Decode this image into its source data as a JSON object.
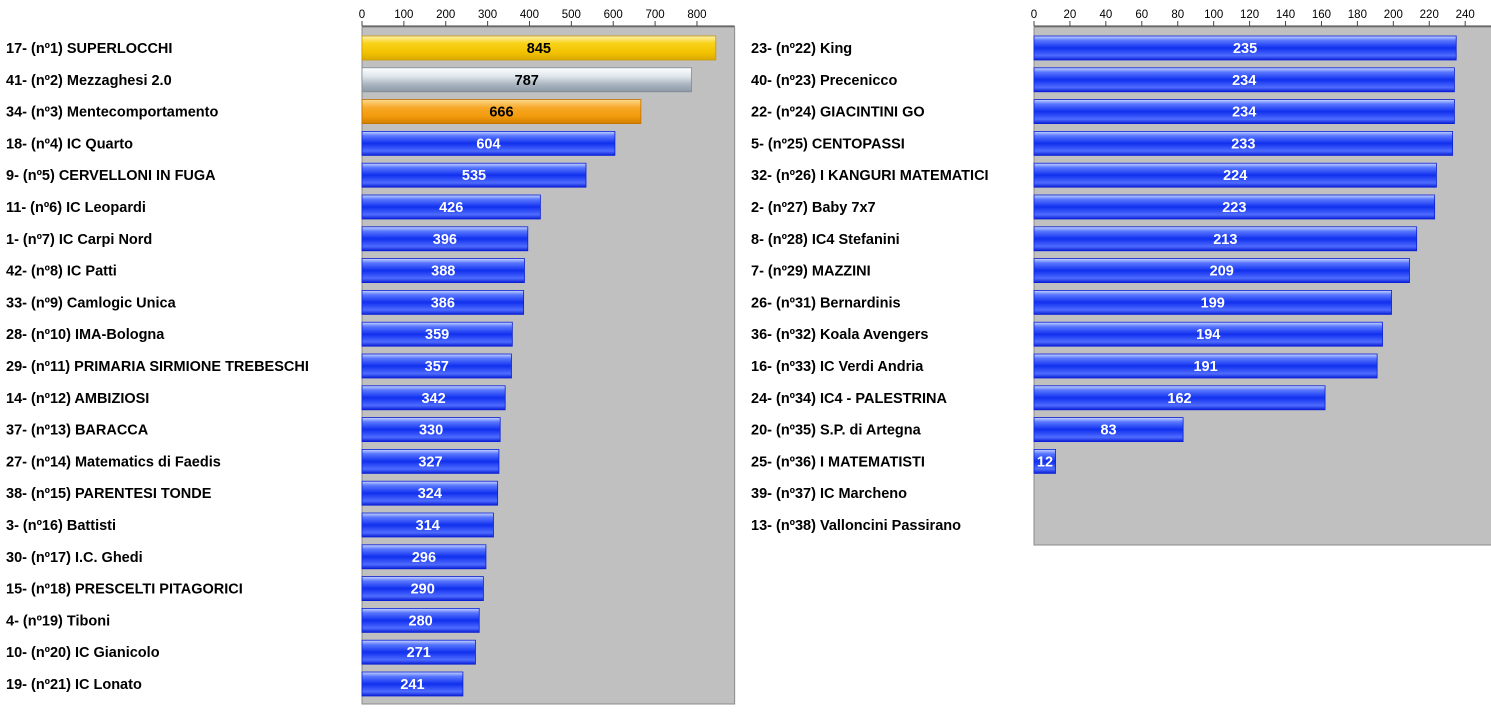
{
  "chart_data": [
    {
      "type": "bar",
      "orientation": "horizontal",
      "categories": [
        "17- (nº1) SUPERLOCCHI",
        "41- (nº2) Mezzaghesi 2.0",
        "34- (nº3) Mentecomportamento",
        "18- (nº4) IC Quarto",
        "9- (nº5) CERVELLONI IN FUGA",
        "11- (nº6) IC Leopardi",
        "1- (nº7) IC Carpi Nord",
        "42- (nº8) IC Patti",
        "33- (nº9) Camlogic Unica",
        "28- (nº10) IMA-Bologna",
        "29- (nº11) PRIMARIA SIRMIONE TREBESCHI",
        "14- (nº12) AMBIZIOSI",
        "37- (nº13) BARACCA",
        "27- (nº14) Matematics di Faedis",
        "38- (nº15) PARENTESI TONDE",
        "3- (nº16) Battisti",
        "30- (nº17) I.C. Ghedi",
        "15- (nº18) PRESCELTI PITAGORICI",
        "4- (nº19) Tiboni",
        "10- (nº20) IC Gianicolo",
        "19- (nº21) IC Lonato"
      ],
      "values": [
        845,
        787,
        666,
        604,
        535,
        426,
        396,
        388,
        386,
        359,
        357,
        342,
        330,
        327,
        324,
        314,
        296,
        290,
        280,
        271,
        241
      ],
      "bar_styles": [
        "gold",
        "silver",
        "bronze",
        "blue",
        "blue",
        "blue",
        "blue",
        "blue",
        "blue",
        "blue",
        "blue",
        "blue",
        "blue",
        "blue",
        "blue",
        "blue",
        "blue",
        "blue",
        "blue",
        "blue",
        "blue"
      ],
      "xlim": [
        0,
        890
      ],
      "xticks": [
        0,
        100,
        200,
        300,
        400,
        500,
        600,
        700,
        800
      ],
      "axis_position": "top",
      "grid": false
    },
    {
      "type": "bar",
      "orientation": "horizontal",
      "categories": [
        "23- (nº22) King",
        "40- (nº23) Precenicco",
        "22- (nº24) GIACINTINI GO",
        "5- (nº25) CENTOPASSI",
        "32- (nº26) I KANGURI MATEMATICI",
        "2- (nº27) Baby 7x7",
        "8- (nº28) IC4 Stefanini",
        "7- (nº29) MAZZINI",
        "26- (nº31) Bernardinis",
        "36- (nº32) Koala Avengers",
        "16- (nº33) IC Verdi Andria",
        "24- (nº34) IC4 - PALESTRINA",
        "20- (nº35) S.P. di Artegna",
        "25- (nº36) I MATEMATISTI",
        "39- (nº37) IC Marcheno",
        "13- (nº38) Valloncini Passirano"
      ],
      "values": [
        235,
        234,
        234,
        233,
        224,
        223,
        213,
        209,
        199,
        194,
        191,
        162,
        83,
        12,
        0,
        0
      ],
      "bar_styles": [
        "blue",
        "blue",
        "blue",
        "blue",
        "blue",
        "blue",
        "blue",
        "blue",
        "blue",
        "blue",
        "blue",
        "blue",
        "blue",
        "blue",
        "blue",
        "blue"
      ],
      "xlim": [
        0,
        255
      ],
      "xticks": [
        0,
        20,
        40,
        60,
        80,
        100,
        120,
        140,
        160,
        180,
        200,
        220,
        240
      ],
      "axis_position": "top",
      "grid": false
    }
  ],
  "colors": {
    "plot_background": "#c0c0c0",
    "blue_dark": "#0a1fd6",
    "blue_light": "#6f8cff",
    "gold": "#f2c200",
    "gold_light": "#ffe680",
    "silver": "#a9b4bf",
    "silver_light": "#eef2f5",
    "bronze": "#f29a0c",
    "bronze_light": "#ffd27a",
    "label_on_blue": "#ffffff",
    "label_on_medal": "#000000"
  }
}
